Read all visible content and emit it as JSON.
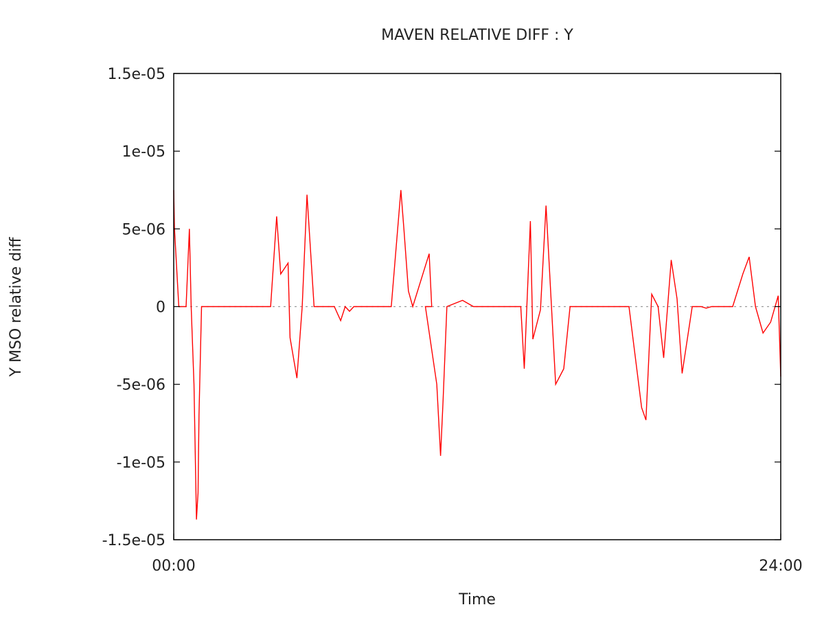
{
  "chart_data": {
    "type": "line",
    "title": "MAVEN RELATIVE DIFF : Y",
    "xlabel": "Time",
    "ylabel": "Y MSO relative diff",
    "xlim": [
      0,
      24
    ],
    "ylim": [
      -1.5e-05,
      1.5e-05
    ],
    "x_ticks": [
      {
        "value": 0,
        "label": "00:00"
      },
      {
        "value": 24,
        "label": "24:00"
      }
    ],
    "y_ticks": [
      {
        "value": 1.5e-05,
        "label": "1.5e-05"
      },
      {
        "value": 1e-05,
        "label": "1e-05"
      },
      {
        "value": 5e-06,
        "label": "5e-06"
      },
      {
        "value": 0,
        "label": "0"
      },
      {
        "value": -5e-06,
        "label": "-5e-06"
      },
      {
        "value": -1e-05,
        "label": "-1e-05"
      },
      {
        "value": -1.5e-05,
        "label": "-1.5e-05"
      }
    ],
    "zero_line": true,
    "line_color": "#ff0000",
    "series": [
      {
        "x": [
          0.0,
          0.03,
          0.2,
          0.49,
          0.62,
          0.69,
          0.8,
          0.9,
          0.96,
          1.0,
          1.1,
          1.2,
          3.83,
          4.07,
          4.23,
          4.52,
          4.6,
          4.87,
          5.08,
          5.27,
          5.55,
          6.03,
          6.35,
          6.6,
          6.78,
          6.95,
          7.12,
          7.45,
          7.6,
          8.6,
          8.98,
          9.1,
          9.28,
          9.45,
          10.1,
          10.2,
          9.95,
          10.4,
          10.55,
          10.65,
          10.8,
          11.42,
          11.85,
          12.5,
          13.1,
          13.55,
          13.72,
          13.86,
          14.1,
          14.2,
          14.5,
          14.72,
          15.1,
          15.42,
          15.67,
          15.78,
          16.0,
          16.2,
          16.4,
          16.7,
          17.0,
          17.2,
          17.5,
          17.9,
          18.0,
          18.5,
          18.67,
          18.9,
          19.15,
          19.37,
          19.67,
          19.9,
          20.1,
          20.5,
          20.85,
          21.05,
          21.27,
          21.7,
          22.1,
          22.5,
          22.75,
          23.0,
          23.3,
          23.6,
          23.9,
          24.0
        ],
        "y": [
          7.5e-06,
          5e-06,
          0,
          0,
          5e-06,
          0,
          -5e-06,
          -1.37e-05,
          -1.2e-05,
          -7e-06,
          0,
          0,
          0,
          5.8e-06,
          2.1e-06,
          2.8e-06,
          -2e-06,
          -4.6e-06,
          0,
          7.2e-06,
          0,
          0,
          0,
          -9e-07,
          0,
          -3e-07,
          0,
          0,
          0,
          0,
          7.5e-06,
          5e-06,
          1e-06,
          0,
          3.4e-06,
          0,
          0,
          -5e-06,
          -9.6e-06,
          -6e-06,
          0,
          4e-07,
          0,
          0,
          0,
          0,
          0,
          -4e-06,
          5.5e-06,
          -2.1e-06,
          -2e-07,
          6.5e-06,
          -5e-06,
          -4e-06,
          0,
          0,
          0,
          0,
          0,
          0,
          0,
          0,
          0,
          0,
          0,
          -6.5e-06,
          -7.3e-06,
          8e-07,
          0,
          -3.3e-06,
          3e-06,
          5e-07,
          -4.3e-06,
          0,
          0,
          -1e-07,
          0,
          0,
          0,
          2.1e-06,
          3.2e-06,
          0,
          -1.7e-06,
          -1e-06,
          7e-07,
          -4.5e-06
        ]
      }
    ]
  }
}
